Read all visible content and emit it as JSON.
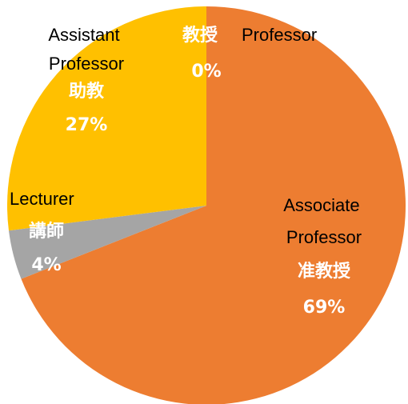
{
  "chart_data": {
    "type": "pie",
    "categories": [
      "Professor",
      "Associate Professor",
      "Lecturer",
      "Assistant Professor"
    ],
    "sublabels": [
      "教授",
      "准教授",
      "講師",
      "助教"
    ],
    "values": [
      0,
      69,
      4,
      27
    ],
    "value_labels": [
      "0%",
      "69%",
      "4%",
      "27%"
    ],
    "colors": [
      "#4472C4",
      "#ED7D31",
      "#A5A5A5",
      "#FFC000"
    ]
  }
}
